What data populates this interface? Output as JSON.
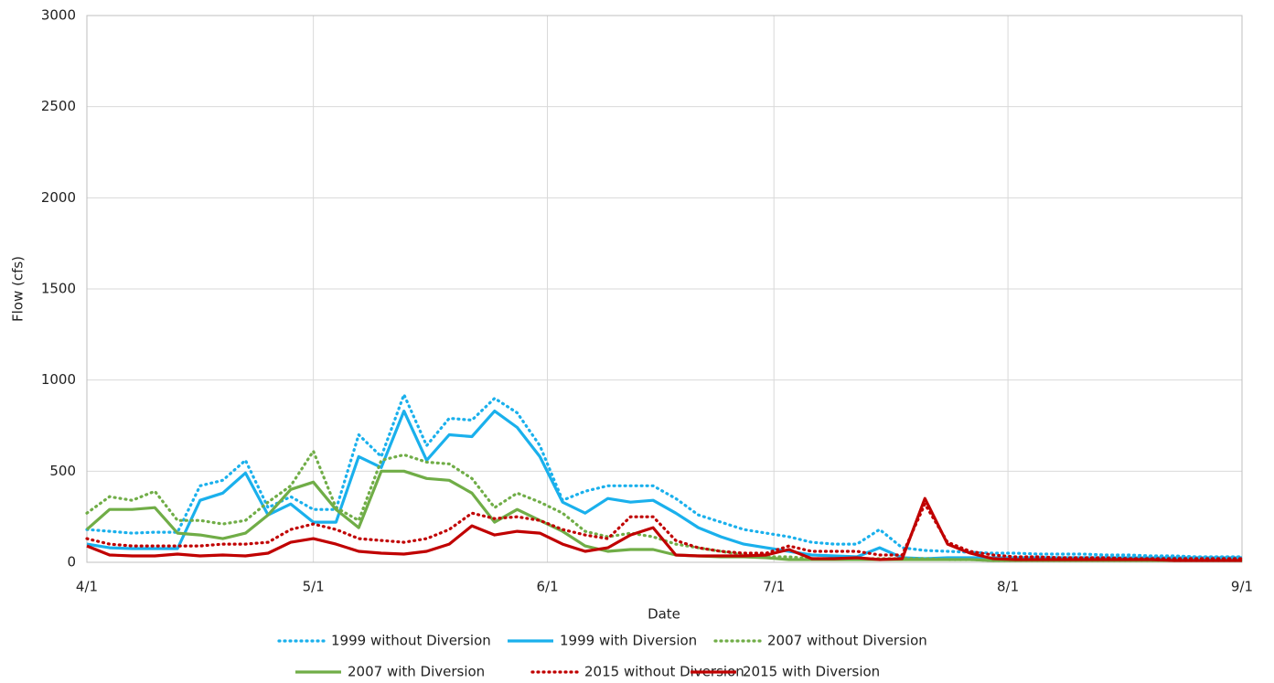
{
  "chart_data": {
    "type": "line",
    "x_label": "Date",
    "y_label": "Flow (cfs)",
    "x": [
      0,
      3,
      6,
      9,
      12,
      15,
      18,
      21,
      24,
      27,
      30,
      33,
      36,
      39,
      42,
      45,
      48,
      51,
      54,
      57,
      60,
      63,
      66,
      69,
      72,
      75,
      78,
      81,
      84,
      87,
      90,
      93,
      96,
      99,
      102,
      105,
      108,
      111,
      114,
      117,
      120,
      123,
      126,
      129,
      132,
      135,
      138,
      141,
      144,
      147,
      150,
      153
    ],
    "xlim": [
      0,
      153
    ],
    "xticks": [
      {
        "value": 0,
        "label": "4/1"
      },
      {
        "value": 30,
        "label": "5/1"
      },
      {
        "value": 61,
        "label": "6/1"
      },
      {
        "value": 91,
        "label": "7/1"
      },
      {
        "value": 122,
        "label": "8/1"
      },
      {
        "value": 153,
        "label": "9/1"
      }
    ],
    "ylim": [
      0,
      3000
    ],
    "yticks": [
      0,
      500,
      1000,
      1500,
      2000,
      2500,
      3000
    ],
    "grid": true,
    "legend": "bottom",
    "series": [
      {
        "name": "1999 without Diversion",
        "color": "#1ab0ec",
        "style": "dotted",
        "values": [
          180,
          170,
          160,
          165,
          165,
          420,
          450,
          560,
          300,
          360,
          290,
          290,
          700,
          580,
          920,
          640,
          790,
          780,
          900,
          820,
          640,
          340,
          390,
          420,
          420,
          420,
          350,
          260,
          220,
          180,
          160,
          140,
          110,
          100,
          100,
          180,
          80,
          65,
          60,
          55,
          50,
          50,
          45,
          45,
          45,
          40,
          40,
          35,
          35,
          30,
          30,
          30
        ]
      },
      {
        "name": "1999 with Diversion",
        "color": "#1ab0ec",
        "style": "solid",
        "values": [
          100,
          80,
          75,
          75,
          75,
          340,
          380,
          490,
          260,
          320,
          220,
          220,
          580,
          520,
          830,
          560,
          700,
          690,
          830,
          740,
          580,
          330,
          270,
          350,
          330,
          340,
          270,
          190,
          140,
          100,
          80,
          60,
          40,
          35,
          30,
          80,
          25,
          20,
          25,
          25,
          25,
          25,
          25,
          25,
          25,
          25,
          25,
          25,
          25,
          25,
          25,
          25
        ]
      },
      {
        "name": "2007 without Diversion",
        "color": "#70ad47",
        "style": "dotted",
        "values": [
          270,
          360,
          340,
          390,
          230,
          230,
          210,
          230,
          330,
          420,
          610,
          300,
          230,
          560,
          590,
          550,
          540,
          460,
          300,
          380,
          330,
          270,
          170,
          140,
          160,
          140,
          100,
          80,
          60,
          40,
          30,
          30,
          20,
          20,
          20,
          20,
          20,
          20,
          15,
          15,
          10,
          10,
          10,
          10,
          10,
          10,
          10,
          10,
          10,
          10,
          10,
          10
        ]
      },
      {
        "name": "2007 with Diversion",
        "color": "#70ad47",
        "style": "solid",
        "values": [
          180,
          290,
          290,
          300,
          160,
          150,
          130,
          160,
          260,
          400,
          440,
          290,
          190,
          500,
          500,
          460,
          450,
          380,
          220,
          290,
          230,
          170,
          90,
          60,
          70,
          70,
          40,
          35,
          30,
          30,
          25,
          15,
          15,
          15,
          15,
          15,
          15,
          15,
          15,
          15,
          10,
          10,
          10,
          10,
          10,
          10,
          10,
          10,
          10,
          10,
          10,
          10
        ]
      },
      {
        "name": "2015 without Diversion",
        "color": "#c00000",
        "style": "dotted",
        "values": [
          130,
          100,
          90,
          90,
          90,
          90,
          100,
          100,
          110,
          180,
          210,
          180,
          130,
          120,
          110,
          130,
          180,
          270,
          240,
          250,
          230,
          180,
          150,
          130,
          250,
          250,
          120,
          80,
          60,
          50,
          50,
          90,
          60,
          60,
          60,
          40,
          40,
          320,
          110,
          60,
          40,
          30,
          30,
          25,
          25,
          25,
          20,
          20,
          20,
          20,
          20,
          20
        ]
      },
      {
        "name": "2015 with Diversion",
        "color": "#c00000",
        "style": "solid",
        "values": [
          90,
          40,
          35,
          35,
          45,
          35,
          40,
          35,
          50,
          110,
          130,
          100,
          60,
          50,
          45,
          60,
          100,
          200,
          150,
          170,
          160,
          100,
          60,
          80,
          150,
          190,
          40,
          35,
          35,
          35,
          40,
          70,
          20,
          20,
          25,
          15,
          20,
          350,
          100,
          50,
          20,
          15,
          15,
          15,
          15,
          15,
          15,
          15,
          10,
          10,
          10,
          10
        ]
      }
    ]
  }
}
